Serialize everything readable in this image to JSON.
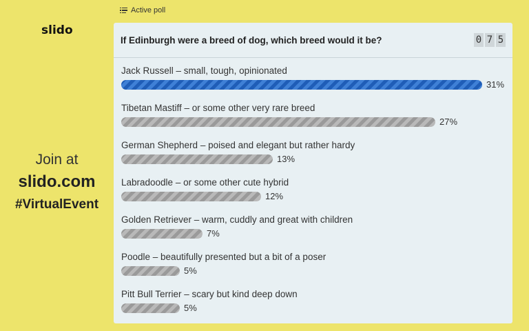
{
  "brand": {
    "logo": "slido"
  },
  "join": {
    "line1": "Join at",
    "line2": "slido.com",
    "line3": "#VirtualEvent"
  },
  "poll": {
    "status": "Active poll",
    "question": "If Edinburgh were a breed of dog, which breed would it be?",
    "vote_count_digits": [
      "0",
      "7",
      "5"
    ],
    "options": [
      {
        "label": "Jack Russell – small, tough, opinionated",
        "percent_text": "31%",
        "percent": 31,
        "leading": true
      },
      {
        "label": "Tibetan Mastiff – or some other very rare breed",
        "percent_text": "27%",
        "percent": 27,
        "leading": false
      },
      {
        "label": "German Shepherd – poised and elegant but rather hardy",
        "percent_text": "13%",
        "percent": 13,
        "leading": false
      },
      {
        "label": "Labradoodle – or some other cute hybrid",
        "percent_text": "12%",
        "percent": 12,
        "leading": false
      },
      {
        "label": "Golden Retriever – warm, cuddly and great with children",
        "percent_text": "7%",
        "percent": 7,
        "leading": false
      },
      {
        "label": "Poodle – beautifully presented but a bit of a poser",
        "percent_text": "5%",
        "percent": 5,
        "leading": false
      },
      {
        "label": "Pitt Bull Terrier – scary but kind deep down",
        "percent_text": "5%",
        "percent": 5,
        "leading": false
      }
    ]
  },
  "colors": {
    "background": "#ede46b",
    "panel": "#e8f0f3",
    "leading_bar": "#2a6cc9",
    "bar": "#a8a8a8"
  }
}
